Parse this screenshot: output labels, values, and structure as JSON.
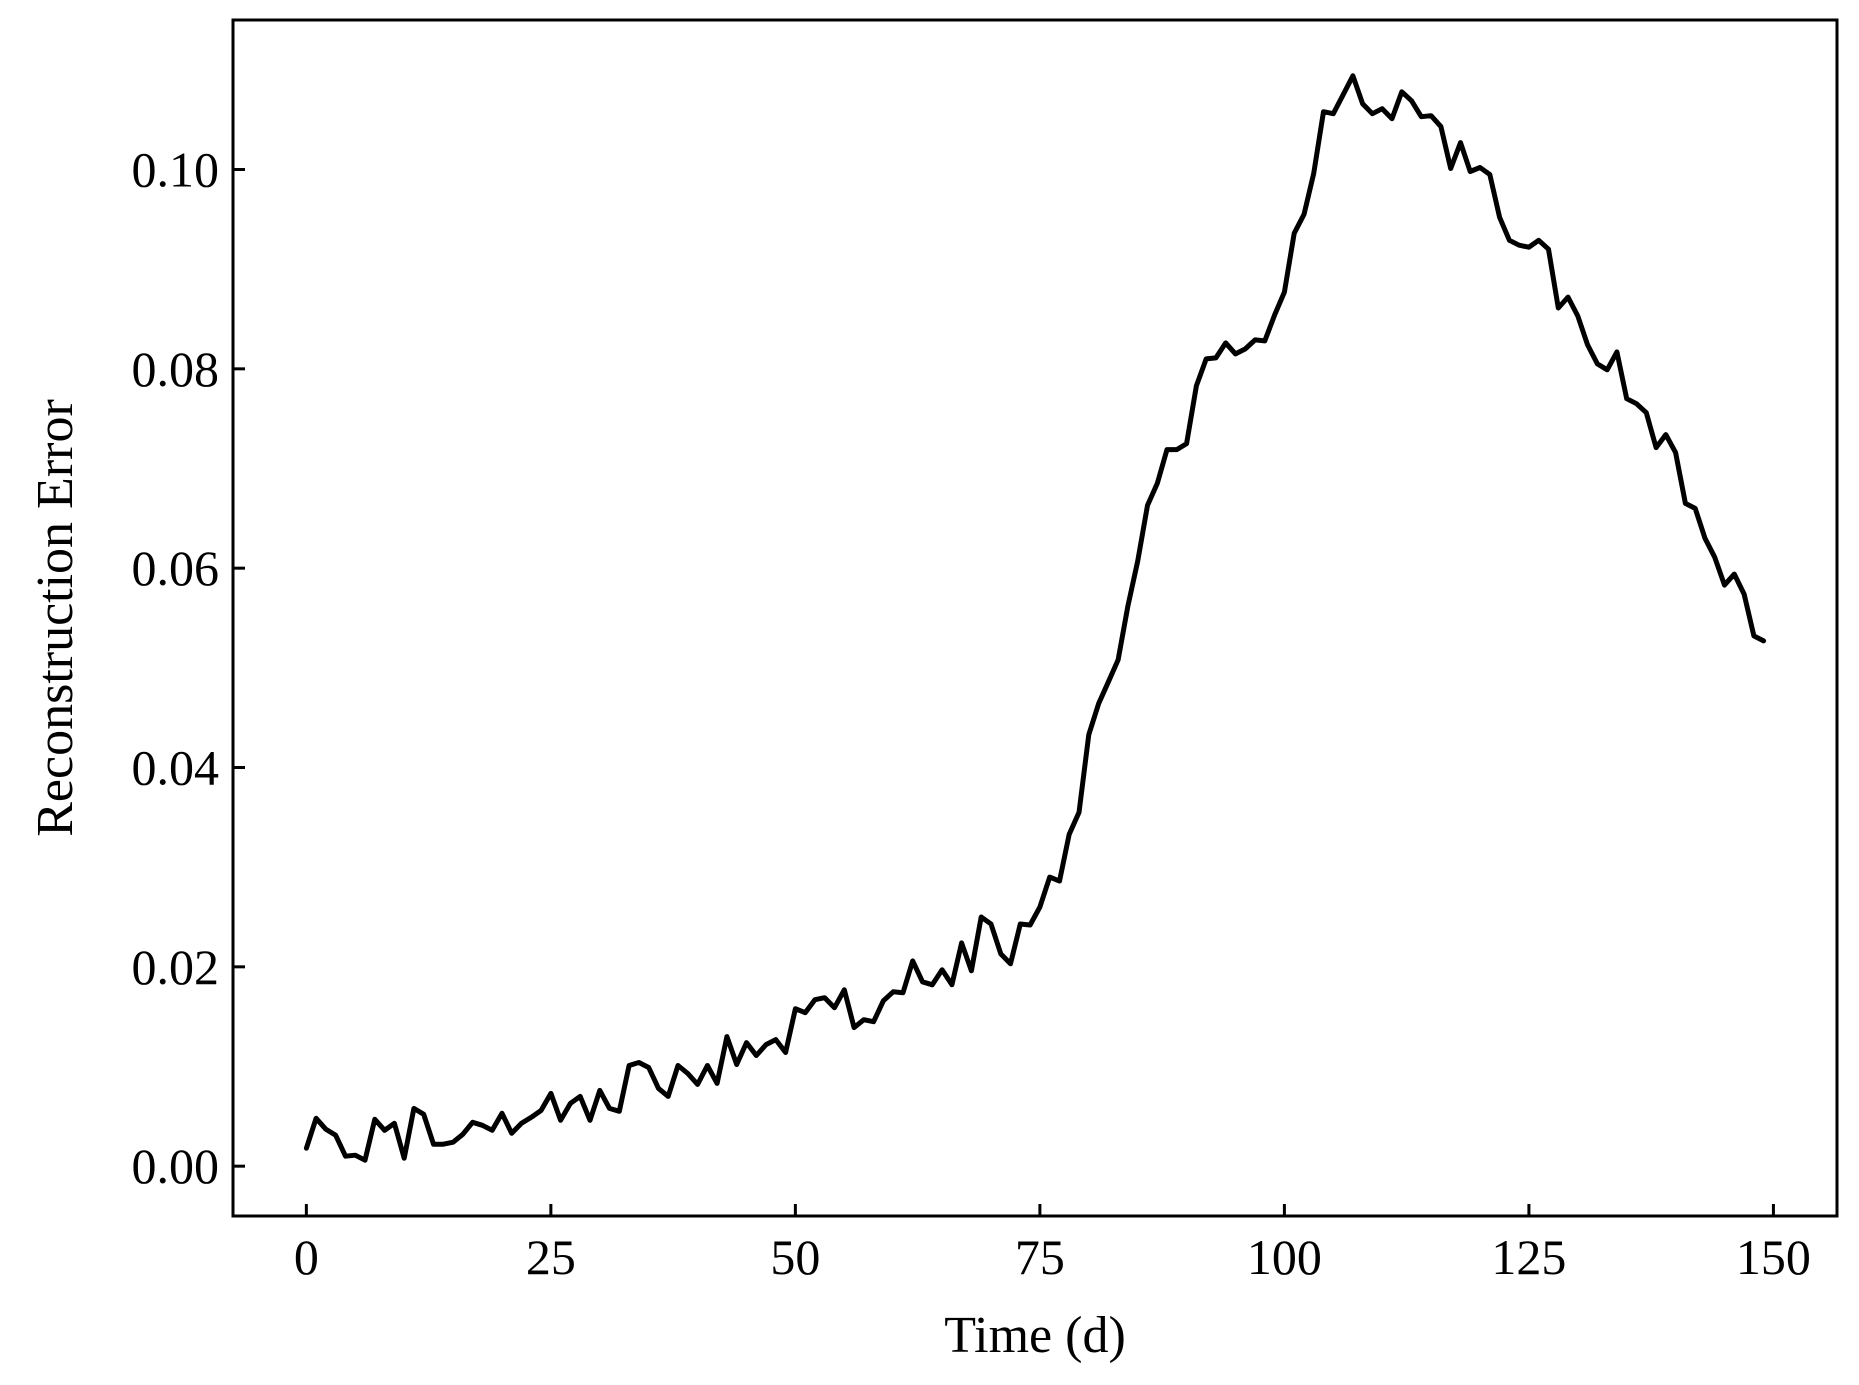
{
  "chart_data": {
    "type": "line",
    "xlabel": "Time (d)",
    "ylabel": "Reconstruction Error",
    "xlim": [
      -7.5,
      156.5
    ],
    "ylim": [
      -0.005,
      0.115
    ],
    "xticks": [
      0,
      25,
      50,
      75,
      100,
      125,
      150
    ],
    "xtick_labels": [
      "0",
      "25",
      "50",
      "75",
      "100",
      "125",
      "150"
    ],
    "yticks": [
      0.0,
      0.02,
      0.04,
      0.06,
      0.08,
      0.1
    ],
    "ytick_labels": [
      "0.00",
      "0.02",
      "0.04",
      "0.06",
      "0.08",
      "0.10"
    ],
    "grid": false,
    "line_color": "#000000",
    "series": [
      {
        "x": [
          0,
          1,
          2,
          3,
          4,
          5,
          6,
          7,
          8,
          9,
          10,
          11,
          12,
          13,
          14,
          15,
          16,
          17,
          18,
          19,
          20,
          21,
          22,
          23,
          24,
          25,
          26,
          27,
          28,
          29,
          30,
          31,
          32,
          33,
          34,
          35,
          36,
          37,
          38,
          39,
          40,
          41,
          42,
          43,
          44,
          45,
          46,
          47,
          48,
          49,
          50,
          51,
          52,
          53,
          54,
          55,
          56,
          57,
          58,
          59,
          60,
          61,
          62,
          63,
          64,
          65,
          66,
          67,
          68,
          69,
          70,
          71,
          72,
          73,
          74,
          75,
          76,
          77,
          78,
          79,
          80,
          81,
          82,
          83,
          84,
          85,
          86,
          87,
          88,
          89,
          90,
          91,
          92,
          93,
          94,
          95,
          96,
          97,
          98,
          99,
          100,
          101,
          102,
          103,
          104,
          105,
          106,
          107,
          108,
          109,
          110,
          111,
          112,
          113,
          114,
          115,
          116,
          117,
          118,
          119,
          120,
          121,
          122,
          123,
          124,
          125,
          126,
          127,
          128,
          129,
          130,
          131,
          132,
          133,
          134,
          135,
          136,
          137,
          138,
          139,
          140,
          141,
          142,
          143,
          144,
          145,
          146,
          147,
          148,
          149
        ],
        "y": [
          0.0018,
          0.0048,
          0.0037,
          0.0031,
          0.001,
          0.0011,
          0.0006,
          0.0047,
          0.0036,
          0.0043,
          0.0008,
          0.0058,
          0.0052,
          0.0022,
          0.0022,
          0.0024,
          0.0032,
          0.0044,
          0.0041,
          0.0036,
          0.0053,
          0.0033,
          0.0043,
          0.0049,
          0.0056,
          0.0073,
          0.0046,
          0.0063,
          0.007,
          0.0046,
          0.0076,
          0.0058,
          0.0055,
          0.0101,
          0.0104,
          0.0099,
          0.0078,
          0.007,
          0.0101,
          0.0093,
          0.0082,
          0.0101,
          0.0083,
          0.013,
          0.0102,
          0.0124,
          0.0111,
          0.0122,
          0.0127,
          0.0114,
          0.0158,
          0.0154,
          0.0167,
          0.0169,
          0.0159,
          0.0177,
          0.0139,
          0.0147,
          0.0145,
          0.0166,
          0.0175,
          0.0174,
          0.0206,
          0.0185,
          0.0182,
          0.0197,
          0.0182,
          0.0224,
          0.0196,
          0.025,
          0.0243,
          0.0213,
          0.0203,
          0.0243,
          0.0242,
          0.026,
          0.029,
          0.0286,
          0.0333,
          0.0355,
          0.0433,
          0.0464,
          0.0486,
          0.0508,
          0.0562,
          0.0607,
          0.0663,
          0.0685,
          0.0719,
          0.0719,
          0.0725,
          0.0783,
          0.081,
          0.0811,
          0.0826,
          0.0815,
          0.082,
          0.0829,
          0.0828,
          0.0854,
          0.0877,
          0.0936,
          0.0955,
          0.0996,
          0.1058,
          0.1056,
          0.1075,
          0.1094,
          0.1066,
          0.1056,
          0.1061,
          0.1051,
          0.1078,
          0.1069,
          0.1053,
          0.1054,
          0.1043,
          0.1001,
          0.1027,
          0.0998,
          0.1002,
          0.0995,
          0.0952,
          0.0929,
          0.0924,
          0.0922,
          0.0929,
          0.092,
          0.0861,
          0.0872,
          0.0853,
          0.0824,
          0.0805,
          0.0799,
          0.0817,
          0.077,
          0.0765,
          0.0756,
          0.0721,
          0.0734,
          0.0716,
          0.0665,
          0.066,
          0.063,
          0.0611,
          0.0583,
          0.0594,
          0.0574,
          0.0532,
          0.0527
        ]
      }
    ]
  }
}
